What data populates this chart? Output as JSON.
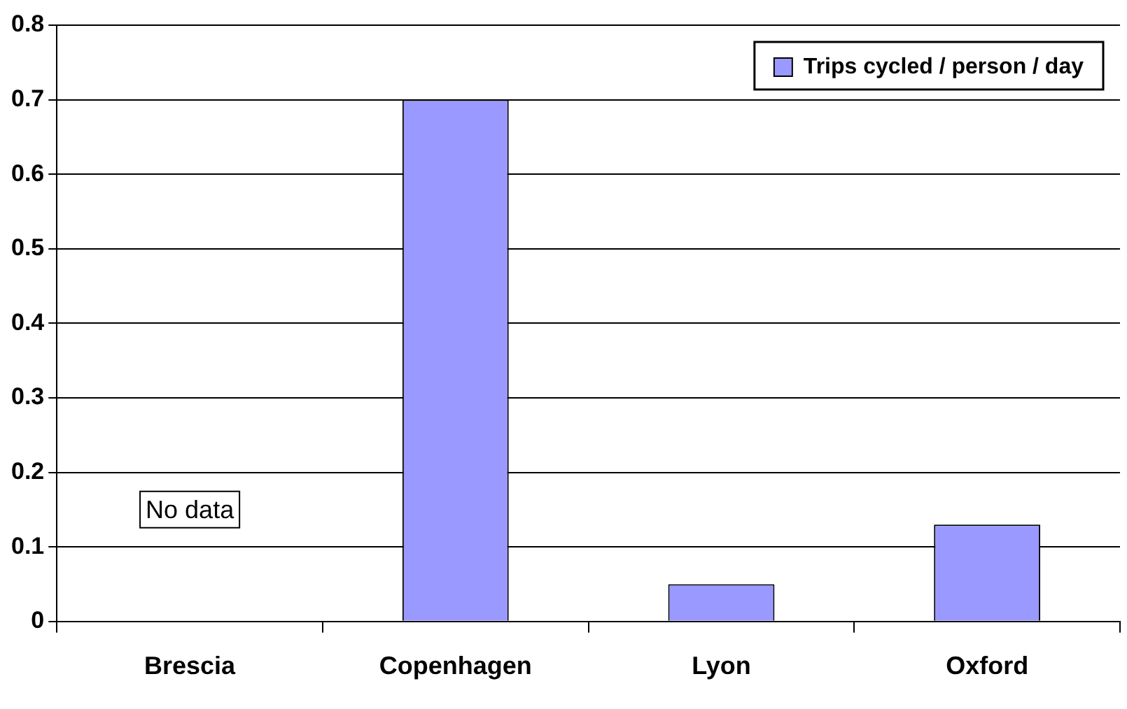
{
  "chart_data": {
    "type": "bar",
    "categories": [
      "Brescia",
      "Copenhagen",
      "Lyon",
      "Oxford"
    ],
    "series": [
      {
        "name": "Trips cycled / person / day",
        "color": "#9999ff",
        "values": [
          null,
          0.7,
          0.05,
          0.13
        ]
      }
    ],
    "ylim": [
      0,
      0.8
    ],
    "yticks": [
      0,
      0.1,
      0.2,
      0.3,
      0.4,
      0.5,
      0.6,
      0.7,
      0.8
    ],
    "grid": "y",
    "legend": "top right",
    "annotations": [
      "No data"
    ]
  }
}
